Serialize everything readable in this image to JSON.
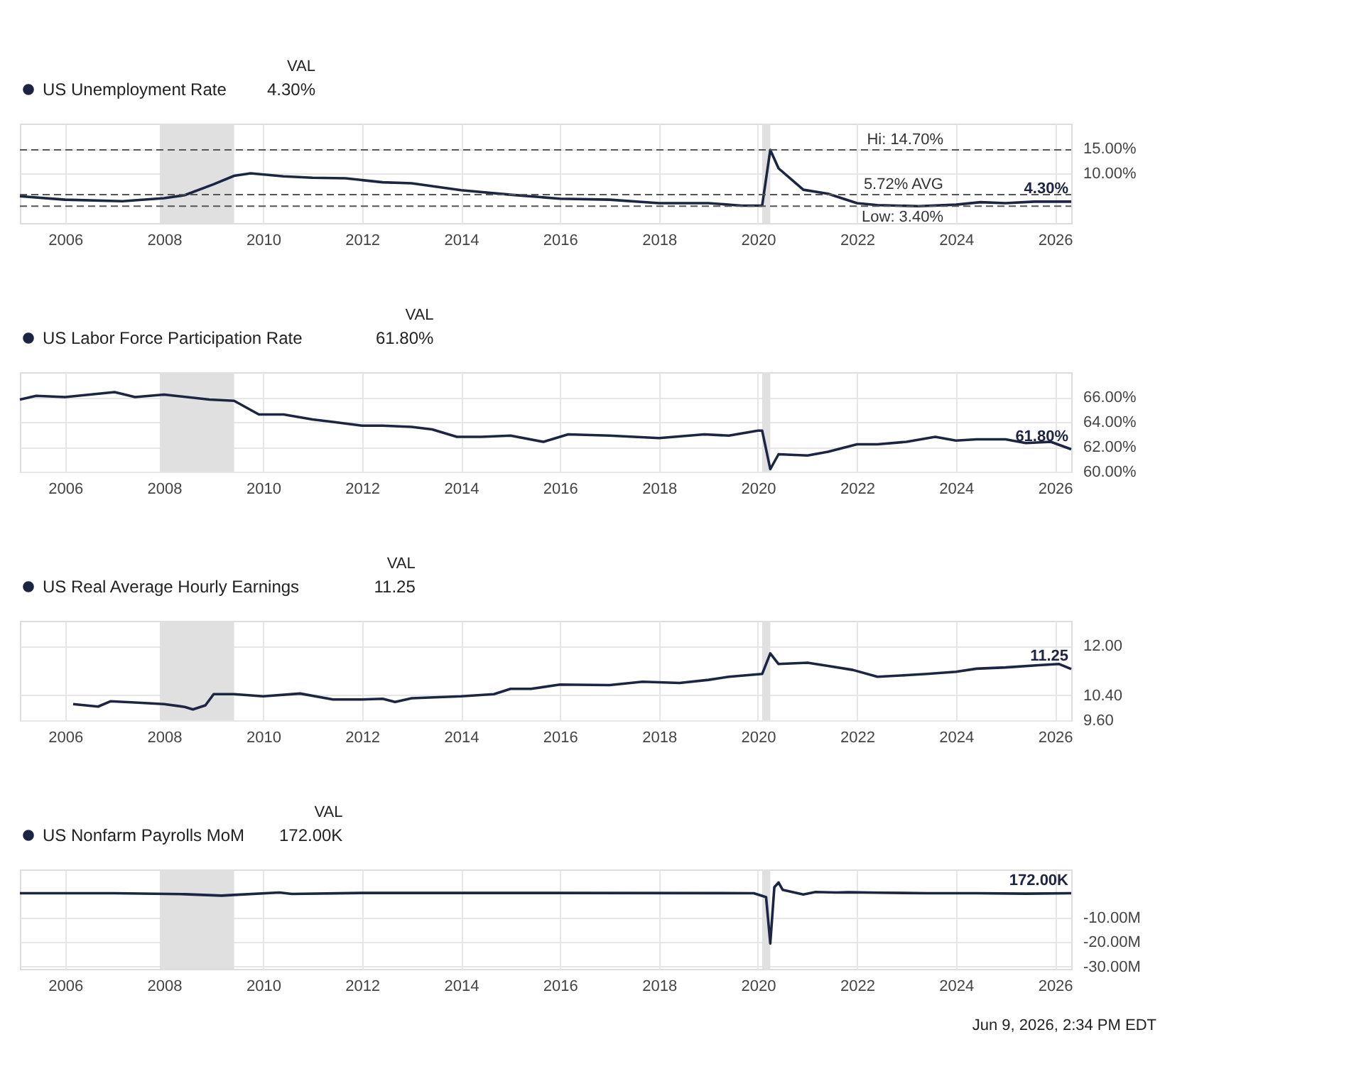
{
  "chart_data": [
    {
      "type": "line",
      "legend": "top left",
      "legend_title": "VAL",
      "grid": true,
      "x": [
        "2005-02",
        "2006-01",
        "2007-03",
        "2008-01",
        "2008-06",
        "2009-01",
        "2009-06",
        "2009-10",
        "2010-06",
        "2011-01",
        "2011-09",
        "2012-06",
        "2013-01",
        "2014-01",
        "2015-01",
        "2016-01",
        "2017-01",
        "2018-01",
        "2019-01",
        "2019-09",
        "2020-02",
        "2020-04",
        "2020-06",
        "2020-12",
        "2021-06",
        "2022-01",
        "2022-06",
        "2023-04",
        "2024-01",
        "2024-07",
        "2025-01",
        "2025-08",
        "2026-01",
        "2026-05"
      ],
      "series": [
        {
          "name": "US Unemployment Rate",
          "color": "#1c2541",
          "values": [
            5.4,
            4.7,
            4.4,
            5.0,
            5.6,
            7.8,
            9.5,
            10.0,
            9.4,
            9.1,
            9.0,
            8.2,
            8.0,
            6.6,
            5.7,
            4.9,
            4.7,
            4.0,
            4.0,
            3.5,
            3.5,
            14.7,
            11.0,
            6.7,
            5.9,
            4.0,
            3.6,
            3.4,
            3.7,
            4.2,
            4.0,
            4.3,
            4.3,
            4.3
          ]
        }
      ],
      "xlim": [
        "2005-02",
        "2026-05"
      ],
      "xticks": [
        "2006",
        "2008",
        "2010",
        "2012",
        "2014",
        "2016",
        "2018",
        "2020",
        "2022",
        "2024",
        "2026"
      ],
      "ylim": [
        0,
        20
      ],
      "yticks": [
        {
          "value": 10,
          "label": "10.00%"
        },
        {
          "value": 15,
          "label": "15.00%"
        }
      ],
      "bands": [
        {
          "axis": "x",
          "from": "2007-12",
          "to": "2009-06",
          "color": "#e0e0e0"
        },
        {
          "axis": "x",
          "from": "2020-02",
          "to": "2020-04",
          "color": "#e0e0e0"
        }
      ],
      "ref_lines": [
        {
          "axis": "y",
          "value": 14.7,
          "label": "Hi: 14.70%",
          "line_style": "dashed",
          "color": "#555555"
        },
        {
          "axis": "y",
          "value": 5.72,
          "label": "5.72% AVG",
          "line_style": "dashed",
          "color": "#555555"
        },
        {
          "axis": "y",
          "value": 3.4,
          "label": "Low: 3.40%",
          "line_style": "dashed",
          "color": "#555555"
        }
      ],
      "annotations": [
        "4.30%",
        {
          "text": "4.30%",
          "x": "2026-05",
          "y": 4.3
        }
      ]
    },
    {
      "type": "line",
      "legend": "top left",
      "legend_title": "VAL",
      "grid": true,
      "x": [
        "2005-02",
        "2005-06",
        "2006-01",
        "2007-01",
        "2007-06",
        "2008-01",
        "2008-12",
        "2009-06",
        "2009-12",
        "2010-06",
        "2011-01",
        "2011-06",
        "2012-01",
        "2012-06",
        "2013-01",
        "2013-06",
        "2013-12",
        "2014-06",
        "2015-01",
        "2015-09",
        "2016-03",
        "2017-01",
        "2018-01",
        "2018-12",
        "2019-06",
        "2020-01",
        "2020-02",
        "2020-04",
        "2020-06",
        "2021-01",
        "2021-06",
        "2022-01",
        "2022-06",
        "2023-01",
        "2023-08",
        "2024-01",
        "2024-06",
        "2025-01",
        "2025-06",
        "2025-12",
        "2026-05"
      ],
      "series": [
        {
          "name": "US Labor Force Participation Rate",
          "color": "#1c2541",
          "values": [
            65.8,
            66.1,
            66.0,
            66.4,
            66.0,
            66.2,
            65.8,
            65.7,
            64.6,
            64.6,
            64.2,
            64.0,
            63.7,
            63.7,
            63.6,
            63.4,
            62.8,
            62.8,
            62.9,
            62.4,
            63.0,
            62.9,
            62.7,
            63.0,
            62.9,
            63.3,
            63.3,
            60.2,
            61.4,
            61.3,
            61.6,
            62.2,
            62.2,
            62.4,
            62.8,
            62.5,
            62.6,
            62.6,
            62.3,
            62.4,
            61.8
          ]
        }
      ],
      "xlim": [
        "2005-02",
        "2026-05"
      ],
      "xticks": [
        "2006",
        "2008",
        "2010",
        "2012",
        "2014",
        "2016",
        "2018",
        "2020",
        "2022",
        "2024",
        "2026"
      ],
      "ylim": [
        60,
        68
      ],
      "yticks": [
        {
          "value": 60,
          "label": "60.00%"
        },
        {
          "value": 62,
          "label": "62.00%"
        },
        {
          "value": 64,
          "label": "64.00%"
        },
        {
          "value": 66,
          "label": "66.00%"
        }
      ],
      "bands": [
        {
          "axis": "x",
          "from": "2007-12",
          "to": "2009-06",
          "color": "#e0e0e0"
        },
        {
          "axis": "x",
          "from": "2020-02",
          "to": "2020-04",
          "color": "#e0e0e0"
        }
      ],
      "annotations": [
        "61.80%",
        {
          "text": "61.80%",
          "x": "2026-05",
          "y": 61.8
        }
      ]
    },
    {
      "type": "line",
      "legend": "top left",
      "legend_title": "VAL",
      "grid": true,
      "x": [
        "2006-03",
        "2006-09",
        "2006-12",
        "2007-06",
        "2008-01",
        "2008-06",
        "2008-08",
        "2008-11",
        "2009-01",
        "2009-06",
        "2010-01",
        "2010-10",
        "2011-06",
        "2012-01",
        "2012-06",
        "2012-09",
        "2013-01",
        "2014-01",
        "2014-09",
        "2015-01",
        "2015-06",
        "2016-01",
        "2017-01",
        "2017-09",
        "2018-06",
        "2019-01",
        "2019-06",
        "2020-02",
        "2020-04",
        "2020-06",
        "2021-01",
        "2021-06",
        "2021-12",
        "2022-06",
        "2023-01",
        "2023-06",
        "2024-01",
        "2024-06",
        "2025-01",
        "2025-09",
        "2026-02",
        "2026-05"
      ],
      "series": [
        {
          "name": "US Real Average Hourly Earnings",
          "color": "#1c2541",
          "values": [
            10.12,
            10.04,
            10.21,
            10.17,
            10.12,
            10.03,
            9.95,
            10.08,
            10.44,
            10.44,
            10.37,
            10.46,
            10.27,
            10.27,
            10.29,
            10.19,
            10.31,
            10.37,
            10.44,
            10.61,
            10.61,
            10.75,
            10.73,
            10.84,
            10.8,
            10.9,
            11.0,
            11.09,
            11.75,
            11.41,
            11.45,
            11.35,
            11.22,
            11.0,
            11.05,
            11.09,
            11.16,
            11.26,
            11.3,
            11.37,
            11.41,
            11.25
          ]
        }
      ],
      "xlim": [
        "2005-02",
        "2026-05"
      ],
      "xticks": [
        "2006",
        "2008",
        "2010",
        "2012",
        "2014",
        "2016",
        "2018",
        "2020",
        "2022",
        "2024",
        "2026"
      ],
      "ylim": [
        9.6,
        12.8
      ],
      "yticks": [
        {
          "value": 9.6,
          "label": "9.60"
        },
        {
          "value": 10.4,
          "label": "10.40"
        },
        {
          "value": 12,
          "label": "12.00"
        }
      ],
      "bands": [
        {
          "axis": "x",
          "from": "2007-12",
          "to": "2009-06",
          "color": "#e0e0e0"
        },
        {
          "axis": "x",
          "from": "2020-02",
          "to": "2020-04",
          "color": "#e0e0e0"
        }
      ],
      "annotations": [
        "11.25",
        {
          "text": "11.25",
          "x": "2026-05",
          "y": 11.25
        }
      ]
    },
    {
      "type": "line",
      "legend": "top left",
      "legend_title": "VAL",
      "grid": true,
      "x": [
        "2005-02",
        "2007-01",
        "2008-06",
        "2009-03",
        "2009-06",
        "2010-05",
        "2010-08",
        "2012-01",
        "2015-01",
        "2019-12",
        "2020-03",
        "2020-04",
        "2020-05",
        "2020-06",
        "2020-07",
        "2020-12",
        "2021-03",
        "2021-08",
        "2021-11",
        "2022-06",
        "2023-06",
        "2024-06",
        "2025-06",
        "2026-05"
      ],
      "series": [
        {
          "name": "US Nonfarm Payrolls MoM",
          "color": "#1c2541",
          "values": [
            0.2,
            0.2,
            -0.2,
            -0.8,
            -0.5,
            0.5,
            -0.1,
            0.3,
            0.3,
            0.2,
            -1.4,
            -20.5,
            2.7,
            4.6,
            1.6,
            -0.3,
            0.7,
            0.5,
            0.6,
            0.4,
            0.2,
            0.2,
            0.0,
            0.172
          ]
        }
      ],
      "xlim": [
        "2005-02",
        "2026-05"
      ],
      "xticks": [
        "2006",
        "2008",
        "2010",
        "2012",
        "2014",
        "2016",
        "2018",
        "2020",
        "2022",
        "2024",
        "2026"
      ],
      "ylim": [
        -31,
        10
      ],
      "yticks": [
        {
          "value": -30,
          "label": "-30.00M"
        },
        {
          "value": -20,
          "label": "-20.00M"
        },
        {
          "value": -10,
          "label": "-10.00M"
        }
      ],
      "bands": [
        {
          "axis": "x",
          "from": "2007-12",
          "to": "2009-06",
          "color": "#e0e0e0"
        },
        {
          "axis": "x",
          "from": "2020-02",
          "to": "2020-04",
          "color": "#e0e0e0"
        }
      ],
      "annotations": [
        "172.00K",
        {
          "text": "172.00K",
          "x": "2026-05",
          "y": 0.172
        },
        "Jun 9, 2026, 2:34 PM EDT"
      ]
    }
  ]
}
